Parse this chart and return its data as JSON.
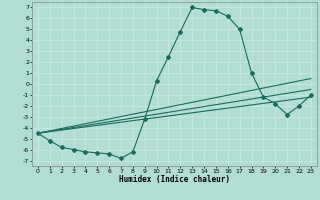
{
  "title": "",
  "xlabel": "Humidex (Indice chaleur)",
  "background_color": "#b2ddd4",
  "grid_color": "#c8e8e0",
  "line_color": "#1a6b5a",
  "xlim": [
    -0.5,
    23.5
  ],
  "ylim": [
    -7.5,
    7.5
  ],
  "xticks": [
    0,
    1,
    2,
    3,
    4,
    5,
    6,
    7,
    8,
    9,
    10,
    11,
    12,
    13,
    14,
    15,
    16,
    17,
    18,
    19,
    20,
    21,
    22,
    23
  ],
  "yticks": [
    -7,
    -6,
    -5,
    -4,
    -3,
    -2,
    -1,
    0,
    1,
    2,
    3,
    4,
    5,
    6,
    7
  ],
  "series": [
    [
      0,
      -4.5
    ],
    [
      1,
      -5.2
    ],
    [
      2,
      -5.8
    ],
    [
      3,
      -6.0
    ],
    [
      4,
      -6.2
    ],
    [
      5,
      -6.3
    ],
    [
      6,
      -6.4
    ],
    [
      7,
      -6.8
    ],
    [
      8,
      -6.2
    ],
    [
      9,
      -3.2
    ],
    [
      10,
      0.3
    ],
    [
      11,
      2.5
    ],
    [
      12,
      4.8
    ],
    [
      13,
      7.0
    ],
    [
      14,
      6.8
    ],
    [
      15,
      6.7
    ],
    [
      16,
      6.2
    ],
    [
      17,
      5.0
    ],
    [
      18,
      1.0
    ],
    [
      19,
      -1.2
    ],
    [
      20,
      -1.8
    ],
    [
      21,
      -2.8
    ],
    [
      22,
      -2.0
    ],
    [
      23,
      -1.0
    ]
  ],
  "extra_lines": [
    [
      [
        0,
        23
      ],
      [
        -4.5,
        0.5
      ]
    ],
    [
      [
        0,
        23
      ],
      [
        -4.5,
        -0.5
      ]
    ],
    [
      [
        0,
        23
      ],
      [
        -4.5,
        -1.2
      ]
    ]
  ]
}
